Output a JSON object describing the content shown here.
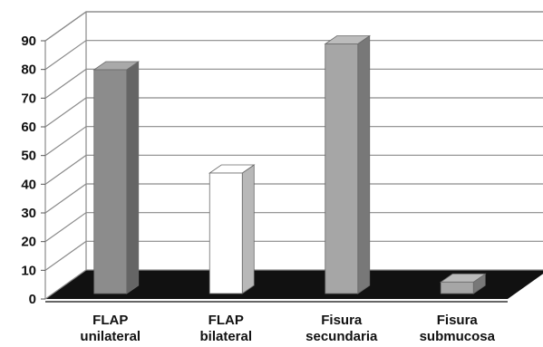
{
  "chart_data": {
    "type": "bar",
    "categories": [
      [
        "FLAP",
        "unilateral"
      ],
      [
        "FLAP",
        "bilateral"
      ],
      [
        "Fisura",
        "secundaria"
      ],
      [
        "Fisura",
        "submucosa"
      ]
    ],
    "values": [
      78,
      42,
      87,
      4
    ],
    "bar_colors": [
      "#8c8c8c",
      "#ffffff",
      "#a6a6a6",
      "#a6a6a6"
    ],
    "floor_color": "#111111",
    "grid": true,
    "three_d": true,
    "ylim": [
      0,
      90
    ],
    "yticks": [
      0,
      10,
      20,
      30,
      40,
      50,
      60,
      70,
      80,
      90
    ],
    "title": "",
    "xlabel": "",
    "ylabel": ""
  }
}
